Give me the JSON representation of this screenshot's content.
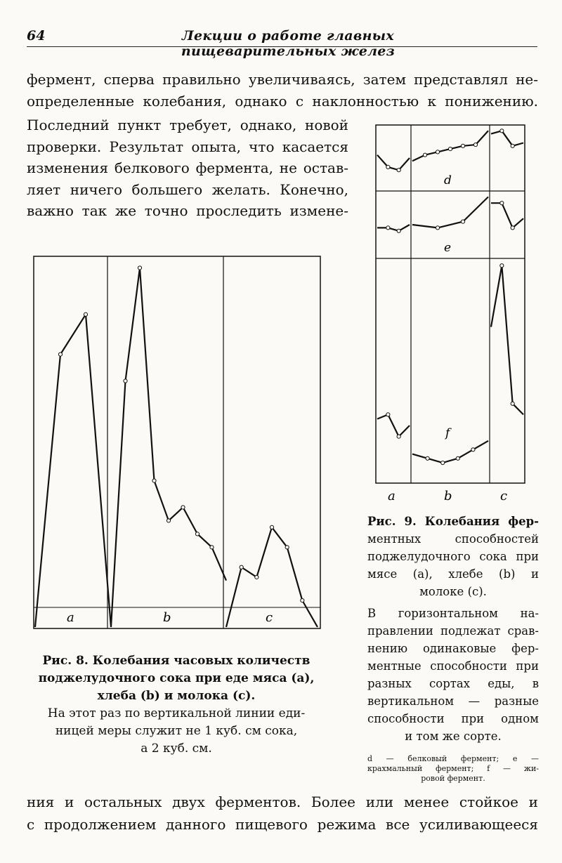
{
  "header": {
    "page_number": "64",
    "running_title": "Лекции о работе главных пищеварительных желез"
  },
  "text_top": [
    "фермент, сперва правильно увеличиваясь, затем представлял не-",
    "определенные колебания, однако с наклонностью к понижению."
  ],
  "text_left": [
    "Последний пункт требует, однако, новой",
    "проверки. Результат опыта, что касается",
    "изменения белкового фермента, не остав-",
    "ляет ничего большего желать. Конечно,",
    "важно так же точно проследить измене-"
  ],
  "fig8": {
    "panel_labels": [
      "a",
      "b",
      "c"
    ],
    "caption_title": "Рис. 8. Колебания часовых количеств поджелудочного сока при еде мяса (a), хлеба (b) и молока (c).",
    "caption_lines": [
      "Рис. 8. Колебания часовых количеств",
      "поджелудочного сока при еде мяса (a),",
      "хлеба (b) и молока (c)."
    ],
    "note_lines": [
      "На этот раз по вертикальной линии еди-",
      "ницей меры служит не 1 куб. см сока,",
      "а 2 куб. см."
    ]
  },
  "fig9": {
    "column_labels": [
      "a",
      "b",
      "c"
    ],
    "row_labels": [
      "d",
      "e",
      "f"
    ],
    "caption_lines": [
      "Рис. 9. Колебания фер-",
      "ментных способностей",
      "поджелудочного сока при",
      "мясе (a), хлебе (b) и",
      "молоке (c)."
    ],
    "note_lines": [
      "В горизонтальном на-",
      "правлении подлежат срав-",
      "нению одинаковые фер-",
      "ментные способности при",
      "разных сортах еды, в",
      "вертикальном — разные",
      "способности при одном",
      "и том же сорте."
    ],
    "legend_lines": [
      "d — белковый фермент; e —",
      "крахмальный фермент; f — жи-",
      "ровой фермент."
    ]
  },
  "text_bottom": [
    "ния и остальных двух ферментов. Более или менее стойкое и",
    "с продолжением данного пищевого режима все усиливающееся"
  ],
  "chart_data": [
    {
      "type": "line",
      "title": "Рис. 8",
      "series": [
        {
          "name": "a",
          "values": [
            0,
            4.1,
            4.7,
            0
          ]
        },
        {
          "name": "b",
          "values": [
            0,
            3.7,
            5.4,
            2.2,
            1.6,
            1.8,
            1.4,
            1.2,
            0.7
          ]
        },
        {
          "name": "c",
          "values": [
            0,
            0.9,
            0.75,
            1.5,
            1.2,
            0.4,
            0
          ]
        }
      ],
      "ylim": [
        0,
        5.5
      ]
    },
    {
      "type": "line",
      "title": "Рис. 9",
      "series": [
        {
          "name": "d-a",
          "values": [
            0.55,
            0.35,
            0.3,
            0.5
          ]
        },
        {
          "name": "d-b",
          "values": [
            0.45,
            0.55,
            0.6,
            0.65,
            0.7,
            0.72,
            0.95
          ]
        },
        {
          "name": "d-c",
          "values": [
            0.9,
            0.95,
            0.7,
            0.75
          ]
        },
        {
          "name": "e-a",
          "values": [
            0.45,
            0.45,
            0.4,
            0.5
          ]
        },
        {
          "name": "e-b",
          "values": [
            0.5,
            0.45,
            0.55,
            0.95
          ]
        },
        {
          "name": "e-c",
          "values": [
            0.85,
            0.85,
            0.45,
            0.6
          ]
        },
        {
          "name": "f-a",
          "values": [
            0.28,
            0.3,
            0.2,
            0.25
          ]
        },
        {
          "name": "f-b",
          "values": [
            0.12,
            0.1,
            0.08,
            0.1,
            0.14,
            0.18
          ]
        },
        {
          "name": "f-c",
          "values": [
            0.7,
            0.98,
            0.35,
            0.3
          ]
        }
      ]
    }
  ]
}
